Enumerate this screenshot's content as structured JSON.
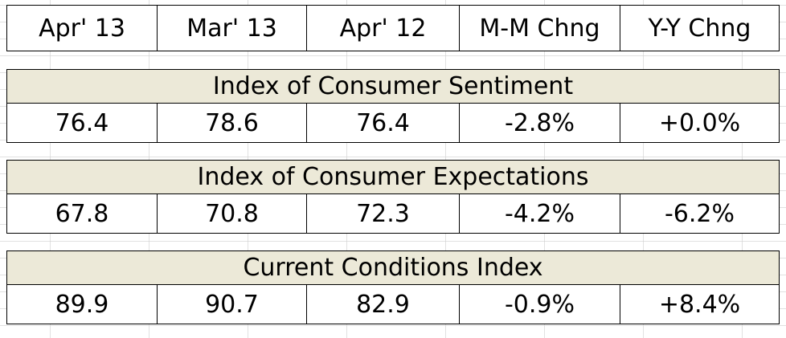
{
  "columns": [
    "Apr' 13",
    "Mar' 13",
    "Apr' 12",
    "M-M Chng",
    "Y-Y Chng"
  ],
  "sections": [
    {
      "title": "Index of Consumer Sentiment",
      "values": [
        "76.4",
        "78.6",
        "76.4",
        "-2.8%",
        "+0.0%"
      ]
    },
    {
      "title": "Index of Consumer Expectations",
      "values": [
        "67.8",
        "70.8",
        "72.3",
        "-4.2%",
        "-6.2%"
      ]
    },
    {
      "title": "Current Conditions Index",
      "values": [
        "89.9",
        "90.7",
        "82.9",
        "-0.9%",
        "+8.4%"
      ]
    }
  ]
}
